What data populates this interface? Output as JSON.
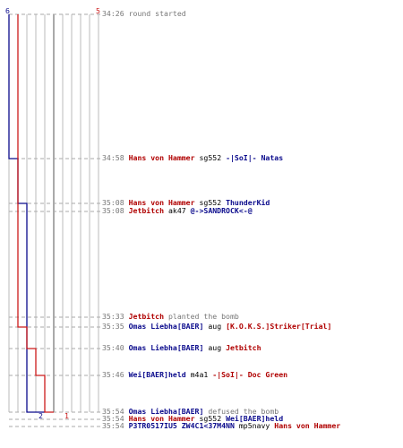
{
  "colors": {
    "ct": "#0a0a8c",
    "t": "#cc1a1a",
    "grid": "#bbbbbb",
    "grid_dark": "#555555",
    "dash": "#aaaaaa",
    "time": "#777777"
  },
  "header": {
    "ct_start": "6",
    "t_start": "5"
  },
  "footer": {
    "ct_end": "2",
    "t_end": "1"
  },
  "chart_data": {
    "type": "line",
    "series": [
      {
        "team": "ct",
        "x": [
          "34:26",
          "34:58",
          "35:08",
          "35:54"
        ],
        "y": [
          6,
          5,
          4,
          2
        ]
      },
      {
        "team": "t",
        "x": [
          "34:26",
          "35:35",
          "35:40",
          "35:46",
          "35:54"
        ],
        "y": [
          5,
          4,
          3,
          2,
          1
        ]
      }
    ]
  },
  "events": [
    {
      "id": "e1",
      "time": "34:26",
      "parts": [
        {
          "text": "round started",
          "cls": "gray"
        }
      ]
    },
    {
      "id": "e2",
      "time": "34:58",
      "parts": [
        {
          "text": "Hans von Hammer",
          "cls": "red"
        },
        {
          "text": " sg552 ",
          "cls": "wpn"
        },
        {
          "text": "-|SoI|- Natas",
          "cls": "blue"
        }
      ]
    },
    {
      "id": "e3",
      "time": "35:08",
      "parts": [
        {
          "text": "Hans von Hammer",
          "cls": "red"
        },
        {
          "text": " sg552 ",
          "cls": "wpn"
        },
        {
          "text": "ThunderKid",
          "cls": "blue"
        }
      ]
    },
    {
      "id": "e4",
      "time": "35:08",
      "parts": [
        {
          "text": "Jetbitch",
          "cls": "red"
        },
        {
          "text": " ak47 ",
          "cls": "wpn"
        },
        {
          "text": "@->SANDROCK<-@",
          "cls": "blue"
        }
      ]
    },
    {
      "id": "e5",
      "time": "35:33",
      "parts": [
        {
          "text": "Jetbitch",
          "cls": "red"
        },
        {
          "text": " planted the bomb",
          "cls": "gray"
        }
      ]
    },
    {
      "id": "e6",
      "time": "35:35",
      "parts": [
        {
          "text": "Omas Liebha[BAER]",
          "cls": "blue"
        },
        {
          "text": " aug ",
          "cls": "wpn"
        },
        {
          "text": "[K.O.K.S.]Striker[Trial]",
          "cls": "red"
        }
      ]
    },
    {
      "id": "e7",
      "time": "35:40",
      "parts": [
        {
          "text": "Omas Liebha[BAER]",
          "cls": "blue"
        },
        {
          "text": " aug ",
          "cls": "wpn"
        },
        {
          "text": "Jetbitch",
          "cls": "red"
        }
      ]
    },
    {
      "id": "e8",
      "time": "35:46",
      "parts": [
        {
          "text": "Wei[BAER]held",
          "cls": "blue"
        },
        {
          "text": " m4a1 ",
          "cls": "wpn"
        },
        {
          "text": "-|SoI|- Doc Green",
          "cls": "red"
        }
      ]
    },
    {
      "id": "e9",
      "time": "35:54",
      "parts": [
        {
          "text": "Omas Liebha[BAER]",
          "cls": "blue"
        },
        {
          "text": " defused the bomb",
          "cls": "gray"
        }
      ]
    },
    {
      "id": "e10",
      "time": "35:54",
      "parts": [
        {
          "text": "Hans von Hammer",
          "cls": "red"
        },
        {
          "text": " sg552 ",
          "cls": "wpn"
        },
        {
          "text": "Wei[BAER]held",
          "cls": "blue"
        }
      ]
    },
    {
      "id": "e11",
      "time": "35:54",
      "parts": [
        {
          "text": "P3TR0517IU5 ZW4C1<37M4NN",
          "cls": "blue"
        },
        {
          "text": " mp5navy ",
          "cls": "wpn"
        },
        {
          "text": "Hans von Hammer",
          "cls": "red"
        }
      ]
    }
  ]
}
